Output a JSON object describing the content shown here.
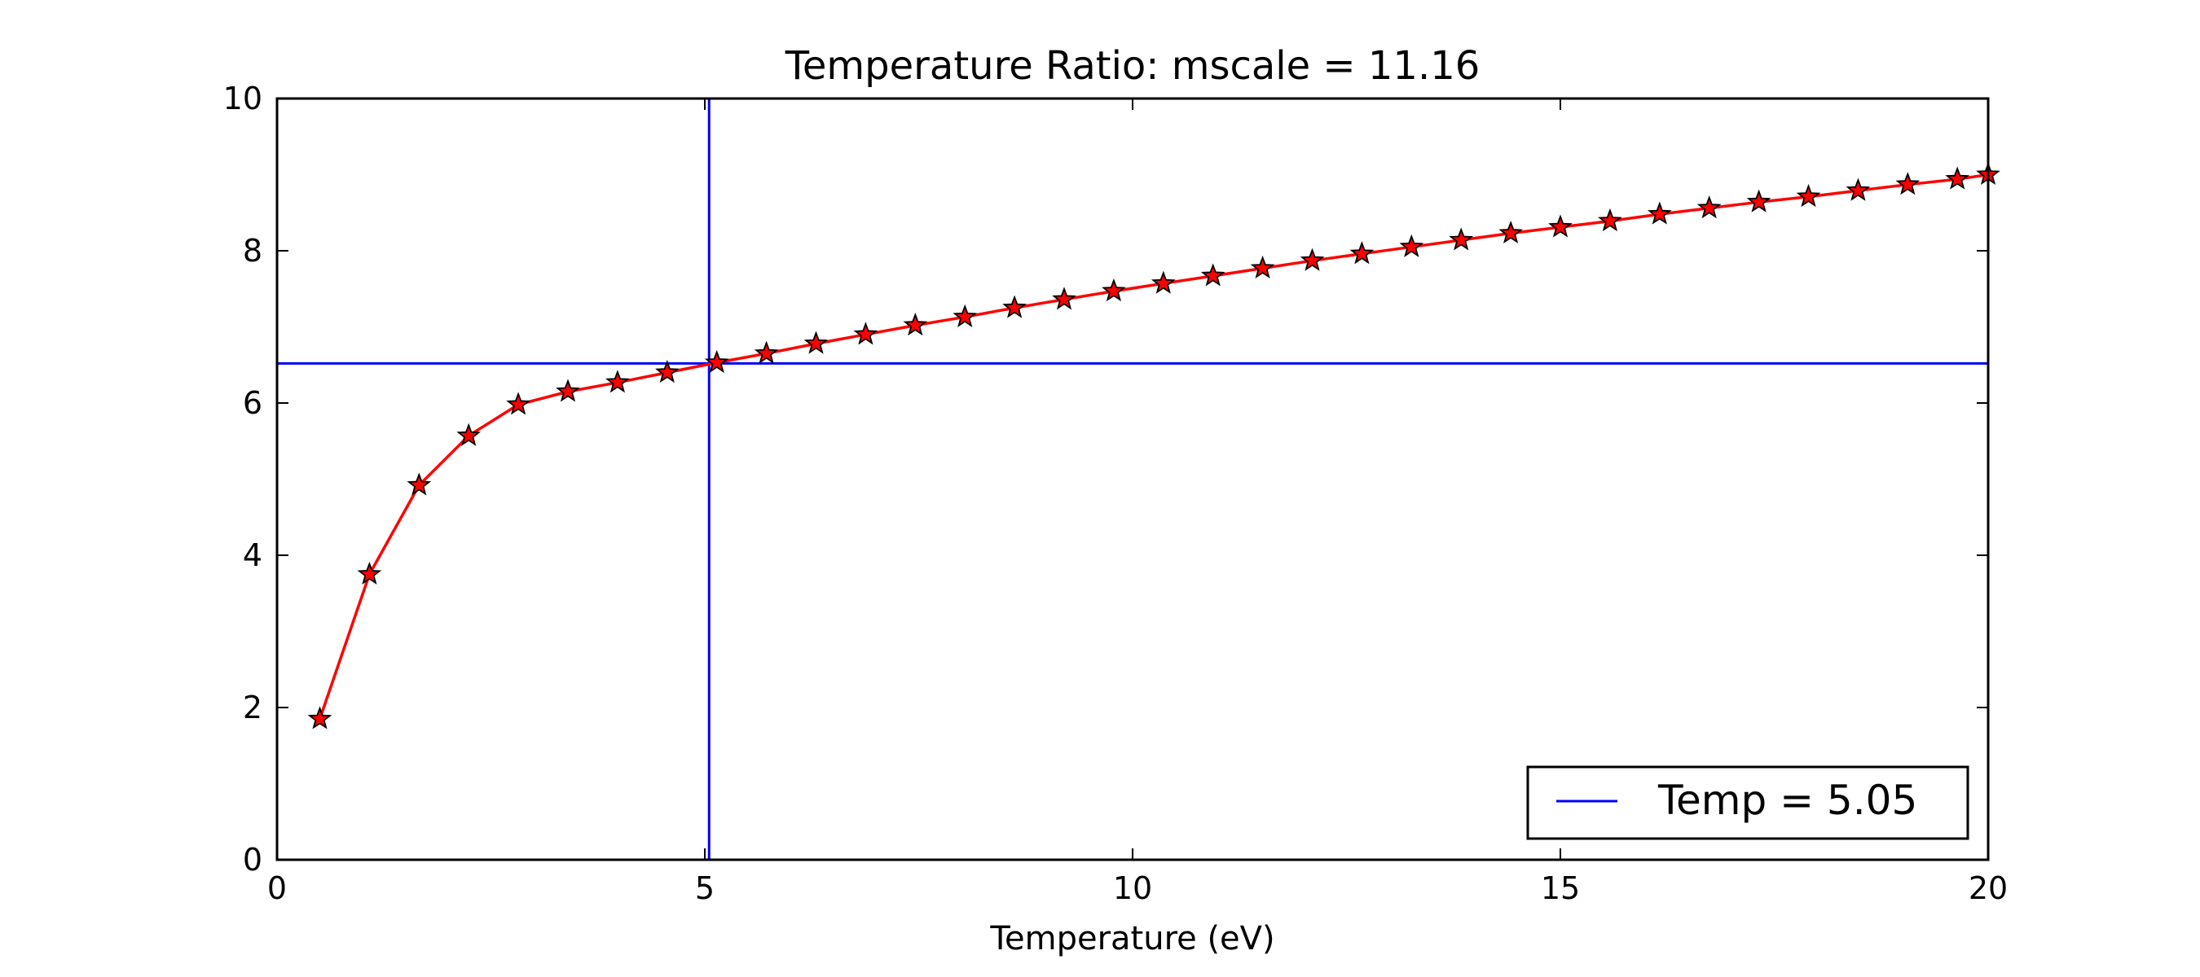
{
  "chart_data": {
    "type": "line",
    "title": "Temperature Ratio: mscale =  11.16",
    "xlabel": "Temperature (eV)",
    "ylabel": "",
    "xlim": [
      0,
      20
    ],
    "ylim": [
      0,
      10
    ],
    "xticks": [
      0,
      5,
      10,
      15,
      20
    ],
    "yticks": [
      0,
      2,
      4,
      6,
      8,
      10
    ],
    "xtick_labels": [
      "0",
      "5",
      "10",
      "15",
      "20"
    ],
    "ytick_labels": [
      "0",
      "2",
      "4",
      "6",
      "8",
      "10"
    ],
    "grid": false,
    "legend_position": "lower-right",
    "legend": [
      {
        "label": "Temp =   5.05",
        "color": "#0000ff"
      }
    ],
    "series": [
      {
        "marker": "star",
        "line_color": "#ff0000",
        "marker_fill": "#ff0000",
        "marker_edge": "#000000",
        "x": [
          0.5,
          1.08,
          1.66,
          2.24,
          2.82,
          3.4,
          3.98,
          4.56,
          5.14,
          5.72,
          6.3,
          6.88,
          7.46,
          8.04,
          8.62,
          9.2,
          9.78,
          10.36,
          10.94,
          11.52,
          12.1,
          12.68,
          13.26,
          13.84,
          14.42,
          15.0,
          15.58,
          16.16,
          16.74,
          17.32,
          17.9,
          18.48,
          19.06,
          19.64,
          20.0
        ],
        "y": [
          1.85,
          3.75,
          4.92,
          5.57,
          5.98,
          6.15,
          6.27,
          6.4,
          6.53,
          6.65,
          6.78,
          6.9,
          7.02,
          7.13,
          7.25,
          7.36,
          7.47,
          7.57,
          7.67,
          7.77,
          7.87,
          7.96,
          8.05,
          8.14,
          8.23,
          8.31,
          8.39,
          8.48,
          8.56,
          8.64,
          8.71,
          8.79,
          8.87,
          8.94,
          9.0
        ]
      }
    ],
    "reference_lines": [
      {
        "orientation": "vertical",
        "value": 5.05,
        "color": "#0000ff"
      },
      {
        "orientation": "horizontal",
        "value": 6.52,
        "color": "#0000ff"
      }
    ]
  }
}
